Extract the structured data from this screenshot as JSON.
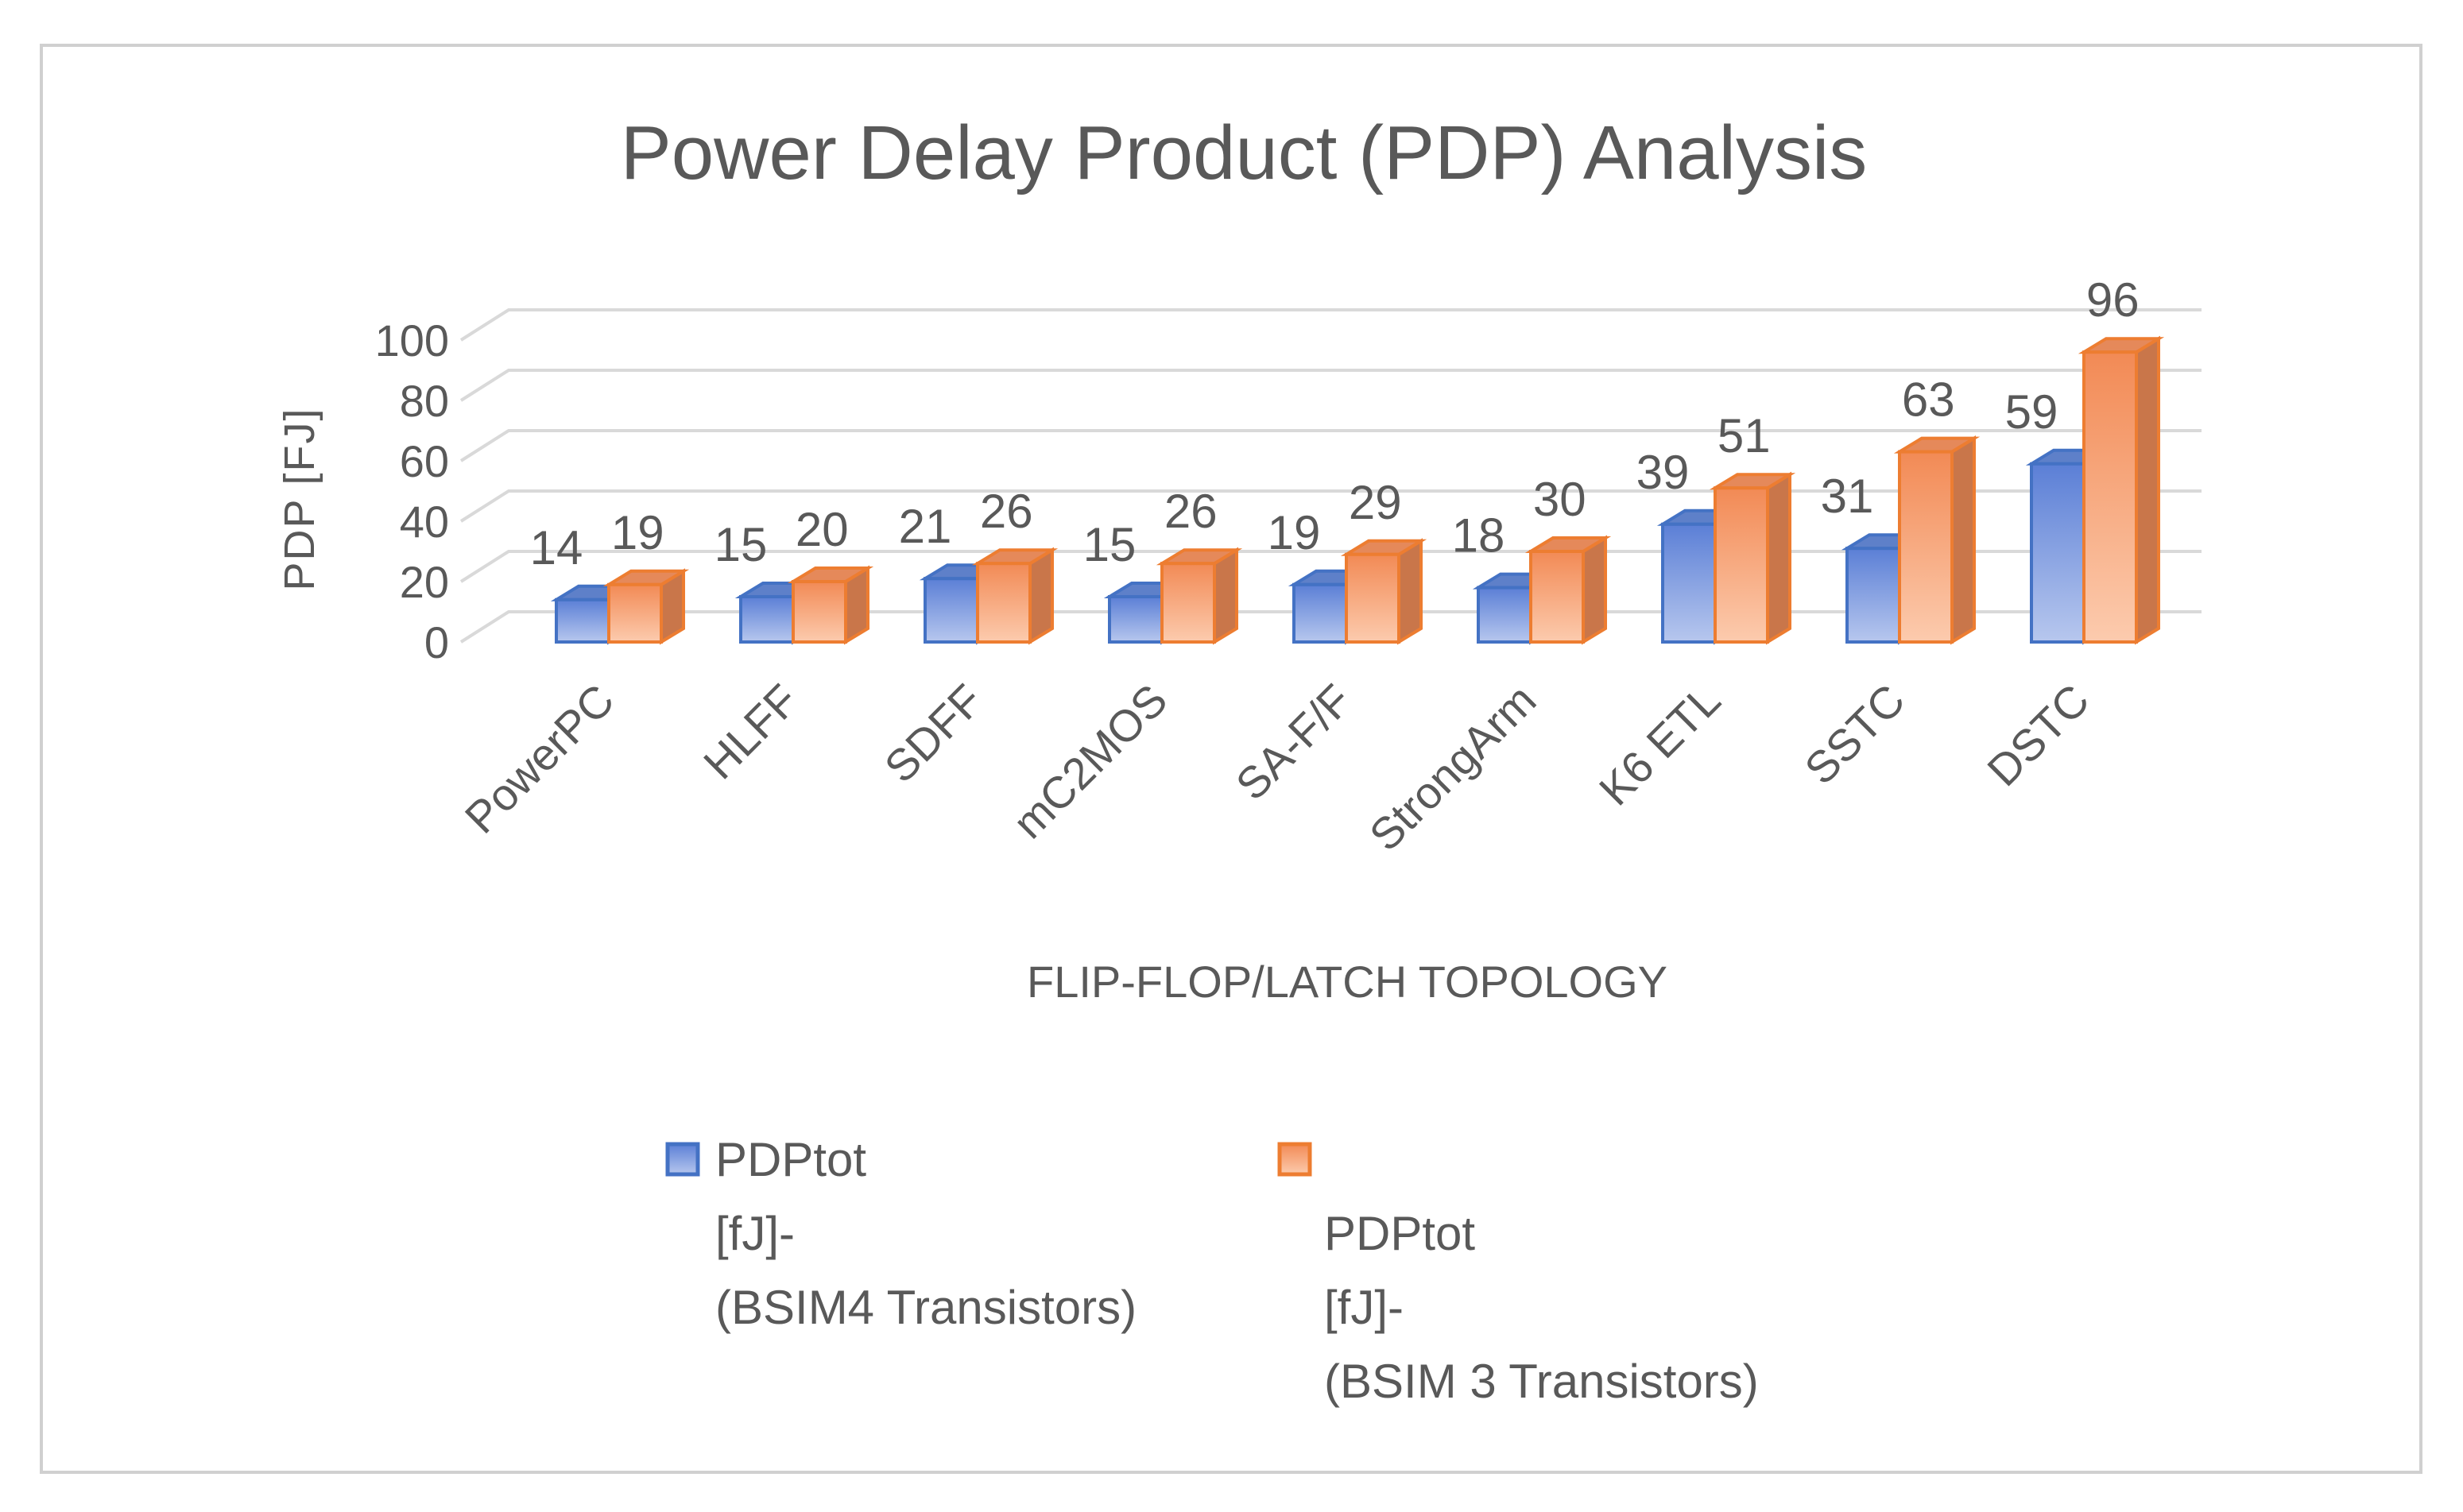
{
  "chart_data": {
    "type": "bar",
    "title": "Power Delay Product (PDP) Analysis",
    "xlabel": "FLIP-FLOP/LATCH TOPOLOGY",
    "ylabel": "PDP [FJ]",
    "ylim": [
      0,
      100
    ],
    "yticks": [
      0,
      20,
      40,
      60,
      80,
      100
    ],
    "grid": true,
    "legend_position": "bottom",
    "categories": [
      "PowerPC",
      "HLFF",
      "SDFF",
      "mC2MOS",
      "SA-F/F",
      "StrongArm",
      "K6 ETL",
      "SSTC",
      "DSTC"
    ],
    "series": [
      {
        "name": "PDPtot [fJ]- (BSIM4 Transistors)",
        "legend_lines": [
          "PDPtot",
          "[fJ]-",
          "(BSIM4 Transistors)"
        ],
        "color": "#7F9FE0",
        "values": [
          14,
          15,
          21,
          15,
          19,
          18,
          39,
          31,
          59
        ]
      },
      {
        "name": "PDPtot [fJ]- (BSIM 3 Transistors)",
        "legend_lines": [
          "",
          "PDPtot",
          "[fJ]-",
          " (BSIM 3 Transistors)"
        ],
        "color": "#F4A070",
        "values": [
          19,
          20,
          26,
          26,
          29,
          30,
          51,
          63,
          96
        ]
      }
    ]
  }
}
